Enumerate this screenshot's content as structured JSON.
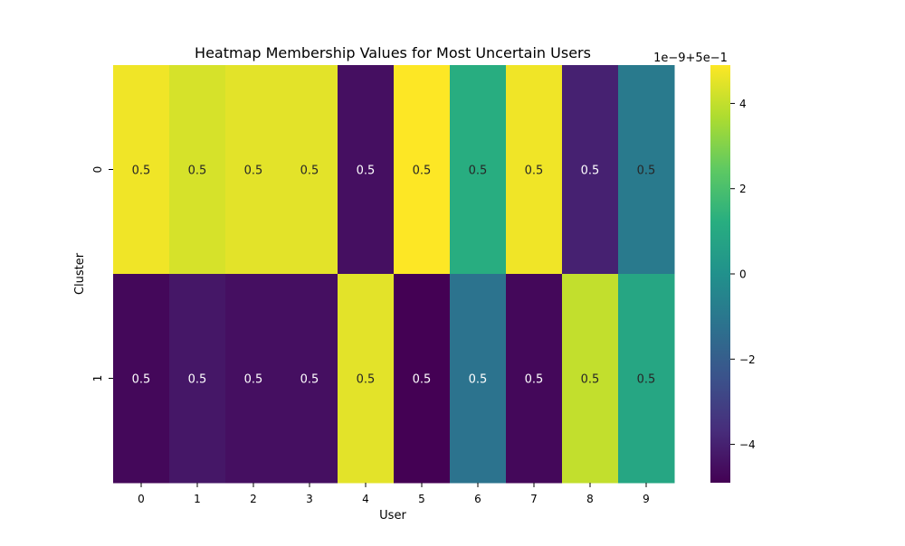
{
  "chart_data": {
    "type": "heatmap",
    "title": "Heatmap Membership Values for Most Uncertain Users",
    "xlabel": "User",
    "ylabel": "Cluster",
    "x_categories": [
      "0",
      "1",
      "2",
      "3",
      "4",
      "5",
      "6",
      "7",
      "8",
      "9"
    ],
    "y_categories": [
      "0",
      "1"
    ],
    "annotation_text": "0.5",
    "colorscale": "viridis",
    "colorbar": {
      "offset_label": "1e−9+5e−1",
      "range_offset_units": [
        -4.9,
        4.9
      ],
      "ticks": [
        -4,
        -2,
        0,
        2,
        4
      ],
      "tick_labels": [
        "−4",
        "−2",
        "0",
        "2",
        "4"
      ]
    },
    "values_offset_units": [
      [
        4.7,
        4.3,
        4.5,
        4.5,
        -4.5,
        4.9,
        1.2,
        4.7,
        -4.0,
        -0.9
      ],
      [
        -4.7,
        -4.3,
        -4.5,
        -4.5,
        4.5,
        -4.9,
        -1.2,
        -4.7,
        4.0,
        0.9
      ]
    ],
    "annotation_colors": {
      "light": "#ffffff",
      "dark": "#262626"
    }
  }
}
